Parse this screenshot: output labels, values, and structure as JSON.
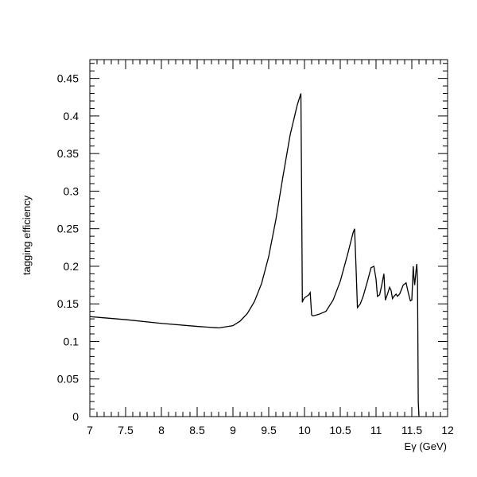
{
  "chart_data": {
    "type": "line",
    "title": "",
    "xlabel": "Eγ (GeV)",
    "ylabel": "tagging efficiency",
    "xlim": [
      7,
      12
    ],
    "ylim": [
      0,
      0.475
    ],
    "x_ticks": [
      "7",
      "7.5",
      "8",
      "8.5",
      "9",
      "9.5",
      "10",
      "10.5",
      "11",
      "11.5",
      "12"
    ],
    "y_ticks": [
      "0",
      "0.05",
      "0.1",
      "0.15",
      "0.2",
      "0.25",
      "0.3",
      "0.35",
      "0.4",
      "0.45"
    ],
    "grid": false,
    "legend": "none",
    "line_color": "#000000",
    "series": [
      {
        "x": [
          7.0,
          7.5,
          8.0,
          8.5,
          8.8,
          9.0,
          9.1,
          9.2,
          9.3,
          9.4,
          9.5,
          9.6,
          9.7,
          9.8,
          9.9,
          9.95,
          9.96,
          9.97,
          9.98,
          10.0,
          10.03,
          10.06,
          10.08,
          10.1,
          10.12,
          10.2,
          10.3,
          10.4,
          10.5,
          10.6,
          10.68,
          10.7,
          10.72,
          10.74,
          10.78,
          10.82,
          10.88,
          10.93,
          10.97,
          11.0,
          11.02,
          11.05,
          11.08,
          11.11,
          11.13,
          11.16,
          11.19,
          11.21,
          11.23,
          11.25,
          11.28,
          11.3,
          11.33,
          11.38,
          11.42,
          11.45,
          11.48,
          11.5,
          11.52,
          11.53,
          11.54,
          11.56,
          11.57,
          11.58,
          11.59,
          11.6
        ],
        "y": [
          0.133,
          0.129,
          0.124,
          0.12,
          0.118,
          0.121,
          0.127,
          0.137,
          0.153,
          0.177,
          0.213,
          0.262,
          0.32,
          0.375,
          0.415,
          0.43,
          0.3,
          0.152,
          0.155,
          0.158,
          0.16,
          0.162,
          0.165,
          0.135,
          0.134,
          0.136,
          0.14,
          0.155,
          0.18,
          0.215,
          0.245,
          0.25,
          0.2,
          0.145,
          0.15,
          0.16,
          0.18,
          0.198,
          0.2,
          0.183,
          0.16,
          0.162,
          0.175,
          0.19,
          0.155,
          0.163,
          0.172,
          0.168,
          0.157,
          0.16,
          0.163,
          0.16,
          0.163,
          0.175,
          0.178,
          0.165,
          0.154,
          0.155,
          0.2,
          0.185,
          0.175,
          0.195,
          0.203,
          0.18,
          0.02,
          0.0
        ]
      }
    ]
  }
}
